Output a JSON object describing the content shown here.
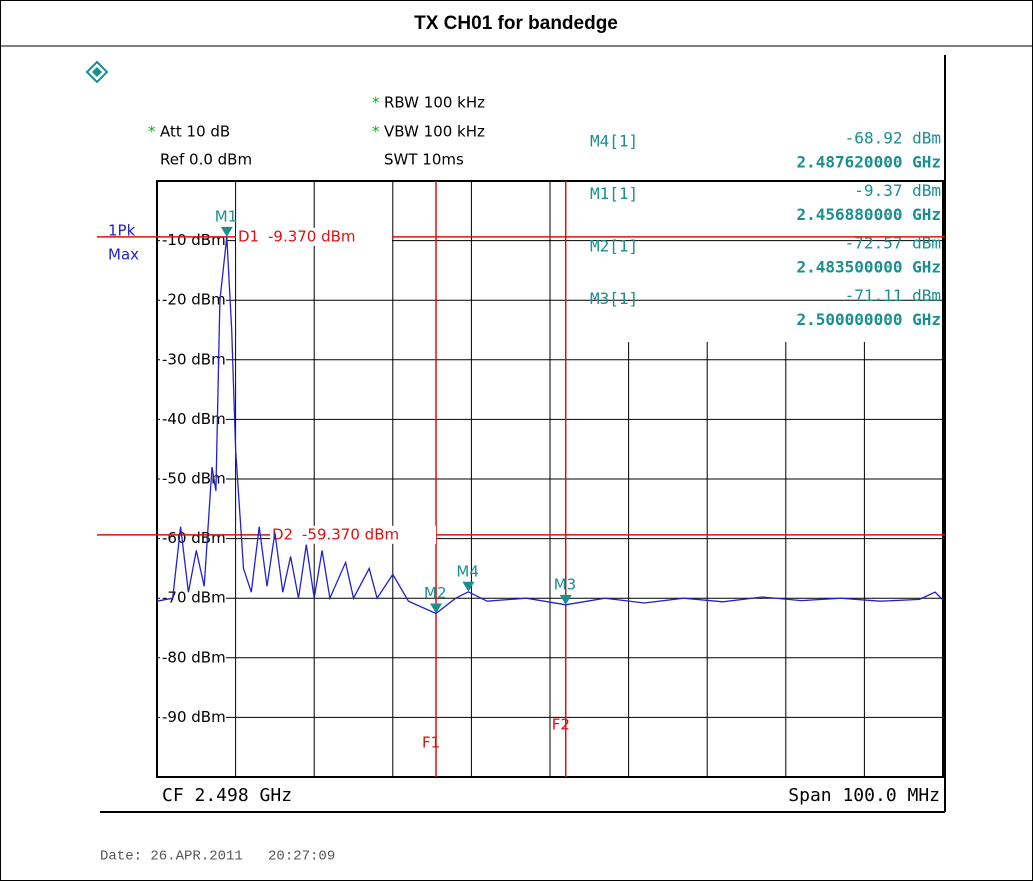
{
  "chart_data": {
    "type": "line",
    "title": "TX CH01 for bandedge",
    "settings": {
      "rbw": {
        "text": "RBW 100 kHz",
        "flag": "*"
      },
      "vbw": {
        "text": "VBW 100 kHz",
        "flag": "*"
      },
      "swt": {
        "text": "SWT 10ms"
      },
      "att": {
        "text": "Att  10 dB",
        "flag": "*"
      },
      "ref": {
        "text": "Ref  0.0 dBm"
      },
      "detector": "1Pk",
      "mode": "Max"
    },
    "center": "CF 2.498 GHz",
    "span": "Span 100.0 MHz",
    "date": "Date: 26.APR.2011   20:27:09",
    "xlim": [
      2.448,
      2.548
    ],
    "x_divisions": 10,
    "ylim": [
      -100,
      0
    ],
    "yticks": [
      {
        "value": -10,
        "label": "-10 dBm"
      },
      {
        "value": -20,
        "label": "-20 dBm"
      },
      {
        "value": -30,
        "label": "-30 dBm"
      },
      {
        "value": -40,
        "label": "-40 dBm"
      },
      {
        "value": -50,
        "label": "-50 dBm"
      },
      {
        "value": -60,
        "label": "-60 dBm"
      },
      {
        "value": -70,
        "label": "-70 dBm"
      },
      {
        "value": -80,
        "label": "-80 dBm"
      },
      {
        "value": -90,
        "label": "-90 dBm"
      }
    ],
    "grid": true,
    "x": [
      2.448,
      2.45,
      2.451,
      2.452,
      2.453,
      2.454,
      2.455,
      2.4555,
      2.456,
      2.45688,
      2.4575,
      2.458,
      2.459,
      2.46,
      2.461,
      2.462,
      2.463,
      2.464,
      2.465,
      2.466,
      2.467,
      2.468,
      2.469,
      2.47,
      2.472,
      2.473,
      2.475,
      2.476,
      2.478,
      2.48,
      2.4835,
      2.486,
      2.48762,
      2.49,
      2.495,
      2.5,
      2.505,
      2.51,
      2.515,
      2.52,
      2.525,
      2.53,
      2.535,
      2.54,
      2.545,
      2.547,
      2.548
    ],
    "series": [
      {
        "name": "1Pk Max",
        "color": "#2222cc",
        "values": [
          -70.5,
          -70,
          -58,
          -69,
          -62,
          -68,
          -48,
          -52,
          -20,
          -9.37,
          -25,
          -45,
          -65,
          -69,
          -58,
          -68,
          -59,
          -69,
          -63,
          -70,
          -61,
          -70,
          -62,
          -70,
          -64,
          -70,
          -65,
          -70,
          -66,
          -70.5,
          -72.57,
          -70,
          -68.92,
          -70.5,
          -70,
          -71.11,
          -70,
          -70.8,
          -70,
          -70.6,
          -69.8,
          -70.4,
          -70,
          -70.5,
          -70.2,
          -69,
          -70.3
        ]
      }
    ],
    "markers": [
      {
        "name": "M4",
        "table_label": "M4[1]",
        "x": 2.48762,
        "y": -68.92,
        "y_label": "-68.92 dBm",
        "x_label": "2.487620000 GHz"
      },
      {
        "name": "M1",
        "table_label": "M1[1]",
        "x": 2.45688,
        "y": -9.37,
        "y_label": "-9.37 dBm",
        "x_label": "2.456880000 GHz"
      },
      {
        "name": "M2",
        "table_label": "M2[1]",
        "x": 2.4835,
        "y": -72.57,
        "y_label": "-72.57 dBm",
        "x_label": "2.483500000 GHz"
      },
      {
        "name": "M3",
        "table_label": "M3[1]",
        "x": 2.5,
        "y": -71.11,
        "y_label": "-71.11 dBm",
        "x_label": "2.500000000 GHz"
      }
    ],
    "display_lines": [
      {
        "name": "D1",
        "value": -9.37,
        "label": "-9.370 dBm"
      },
      {
        "name": "D2",
        "value": -59.37,
        "label": "-59.370 dBm"
      }
    ],
    "frequency_lines": [
      {
        "name": "F1",
        "value": 2.4835
      },
      {
        "name": "F2",
        "value": 2.5
      }
    ]
  }
}
